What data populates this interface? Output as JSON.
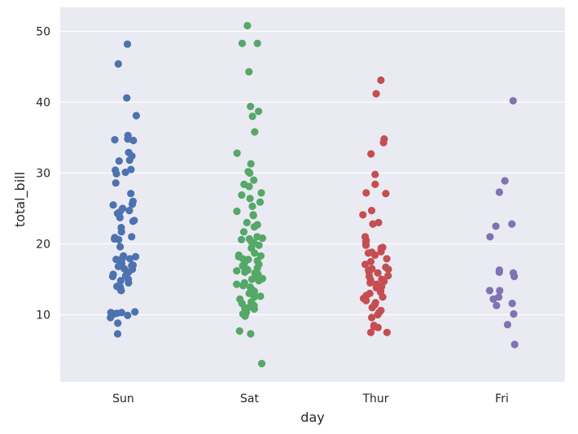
{
  "chart_data": {
    "type": "scatter",
    "title": "",
    "xlabel": "day",
    "ylabel": "total_bill",
    "categories": [
      "Sun",
      "Sat",
      "Thur",
      "Fri"
    ],
    "yticks": [
      10,
      20,
      30,
      40,
      50
    ],
    "ylim": [
      0,
      52.5
    ],
    "grid": true,
    "colors": {
      "background": "#eaeaf2",
      "grid": "#ffffff"
    },
    "series": [
      {
        "category": "Sun",
        "color": "#4c72b0",
        "values": [
          48.2,
          45.4,
          40.6,
          38.1,
          35.3,
          34.8,
          34.7,
          34.6,
          32.9,
          32.4,
          31.8,
          31.7,
          30.5,
          30.4,
          30.1,
          29.9,
          28.6,
          27.1,
          26.0,
          25.6,
          25.5,
          25.0,
          24.7,
          24.5,
          24.3,
          23.7,
          23.3,
          23.2,
          22.3,
          21.7,
          21.0,
          20.9,
          20.7,
          20.6,
          19.6,
          18.3,
          18.2,
          18.0,
          17.9,
          17.8,
          17.3,
          17.0,
          16.9,
          16.8,
          16.5,
          16.4,
          16.0,
          15.7,
          15.5,
          15.4,
          15.0,
          14.8,
          14.5,
          14.0,
          13.9,
          13.5,
          13.4,
          10.4,
          10.3,
          10.3,
          10.2,
          10.1,
          9.9,
          9.6,
          8.8,
          7.3
        ]
      },
      {
        "category": "Sat",
        "color": "#55a868",
        "values": [
          50.8,
          48.3,
          48.3,
          44.3,
          39.4,
          38.7,
          38.0,
          35.8,
          32.8,
          31.3,
          30.2,
          30.0,
          29.0,
          28.4,
          28.1,
          27.2,
          26.9,
          26.4,
          25.9,
          25.3,
          24.6,
          24.1,
          24.0,
          23.0,
          22.7,
          22.4,
          21.7,
          21.0,
          20.8,
          20.7,
          20.6,
          20.3,
          20.1,
          19.8,
          19.4,
          18.7,
          18.4,
          18.3,
          18.2,
          17.9,
          17.8,
          17.6,
          17.3,
          17.1,
          16.9,
          16.6,
          16.4,
          16.3,
          16.2,
          16.0,
          15.9,
          15.7,
          15.4,
          15.1,
          15.0,
          14.8,
          14.5,
          14.3,
          14.1,
          13.9,
          13.4,
          13.3,
          13.1,
          13.0,
          12.8,
          12.6,
          12.5,
          12.2,
          11.8,
          11.6,
          11.3,
          11.0,
          10.9,
          10.8,
          10.6,
          10.3,
          10.1,
          9.8,
          7.7,
          7.3,
          3.1
        ]
      },
      {
        "category": "Thur",
        "color": "#c44e52",
        "values": [
          43.1,
          41.2,
          34.8,
          34.3,
          32.7,
          29.8,
          28.4,
          27.2,
          27.1,
          24.7,
          24.1,
          23.0,
          22.8,
          21.0,
          20.5,
          20.2,
          19.8,
          19.5,
          19.4,
          18.9,
          18.8,
          18.7,
          18.4,
          17.9,
          17.5,
          17.1,
          16.7,
          16.5,
          16.4,
          16.3,
          16.0,
          15.9,
          15.5,
          15.4,
          15.0,
          14.9,
          14.7,
          14.5,
          14.3,
          14.0,
          13.8,
          13.4,
          13.2,
          13.0,
          12.7,
          12.5,
          12.3,
          12.0,
          11.7,
          11.4,
          11.0,
          10.6,
          10.3,
          10.0,
          9.6,
          8.5,
          8.3,
          8.2,
          7.5,
          7.5
        ]
      },
      {
        "category": "Fri",
        "color": "#8172b2",
        "values": [
          40.2,
          28.9,
          27.3,
          22.8,
          22.5,
          21.0,
          16.3,
          16.0,
          15.9,
          15.4,
          13.4,
          13.4,
          12.5,
          12.2,
          11.6,
          11.3,
          10.1,
          8.6,
          5.8
        ]
      }
    ]
  }
}
